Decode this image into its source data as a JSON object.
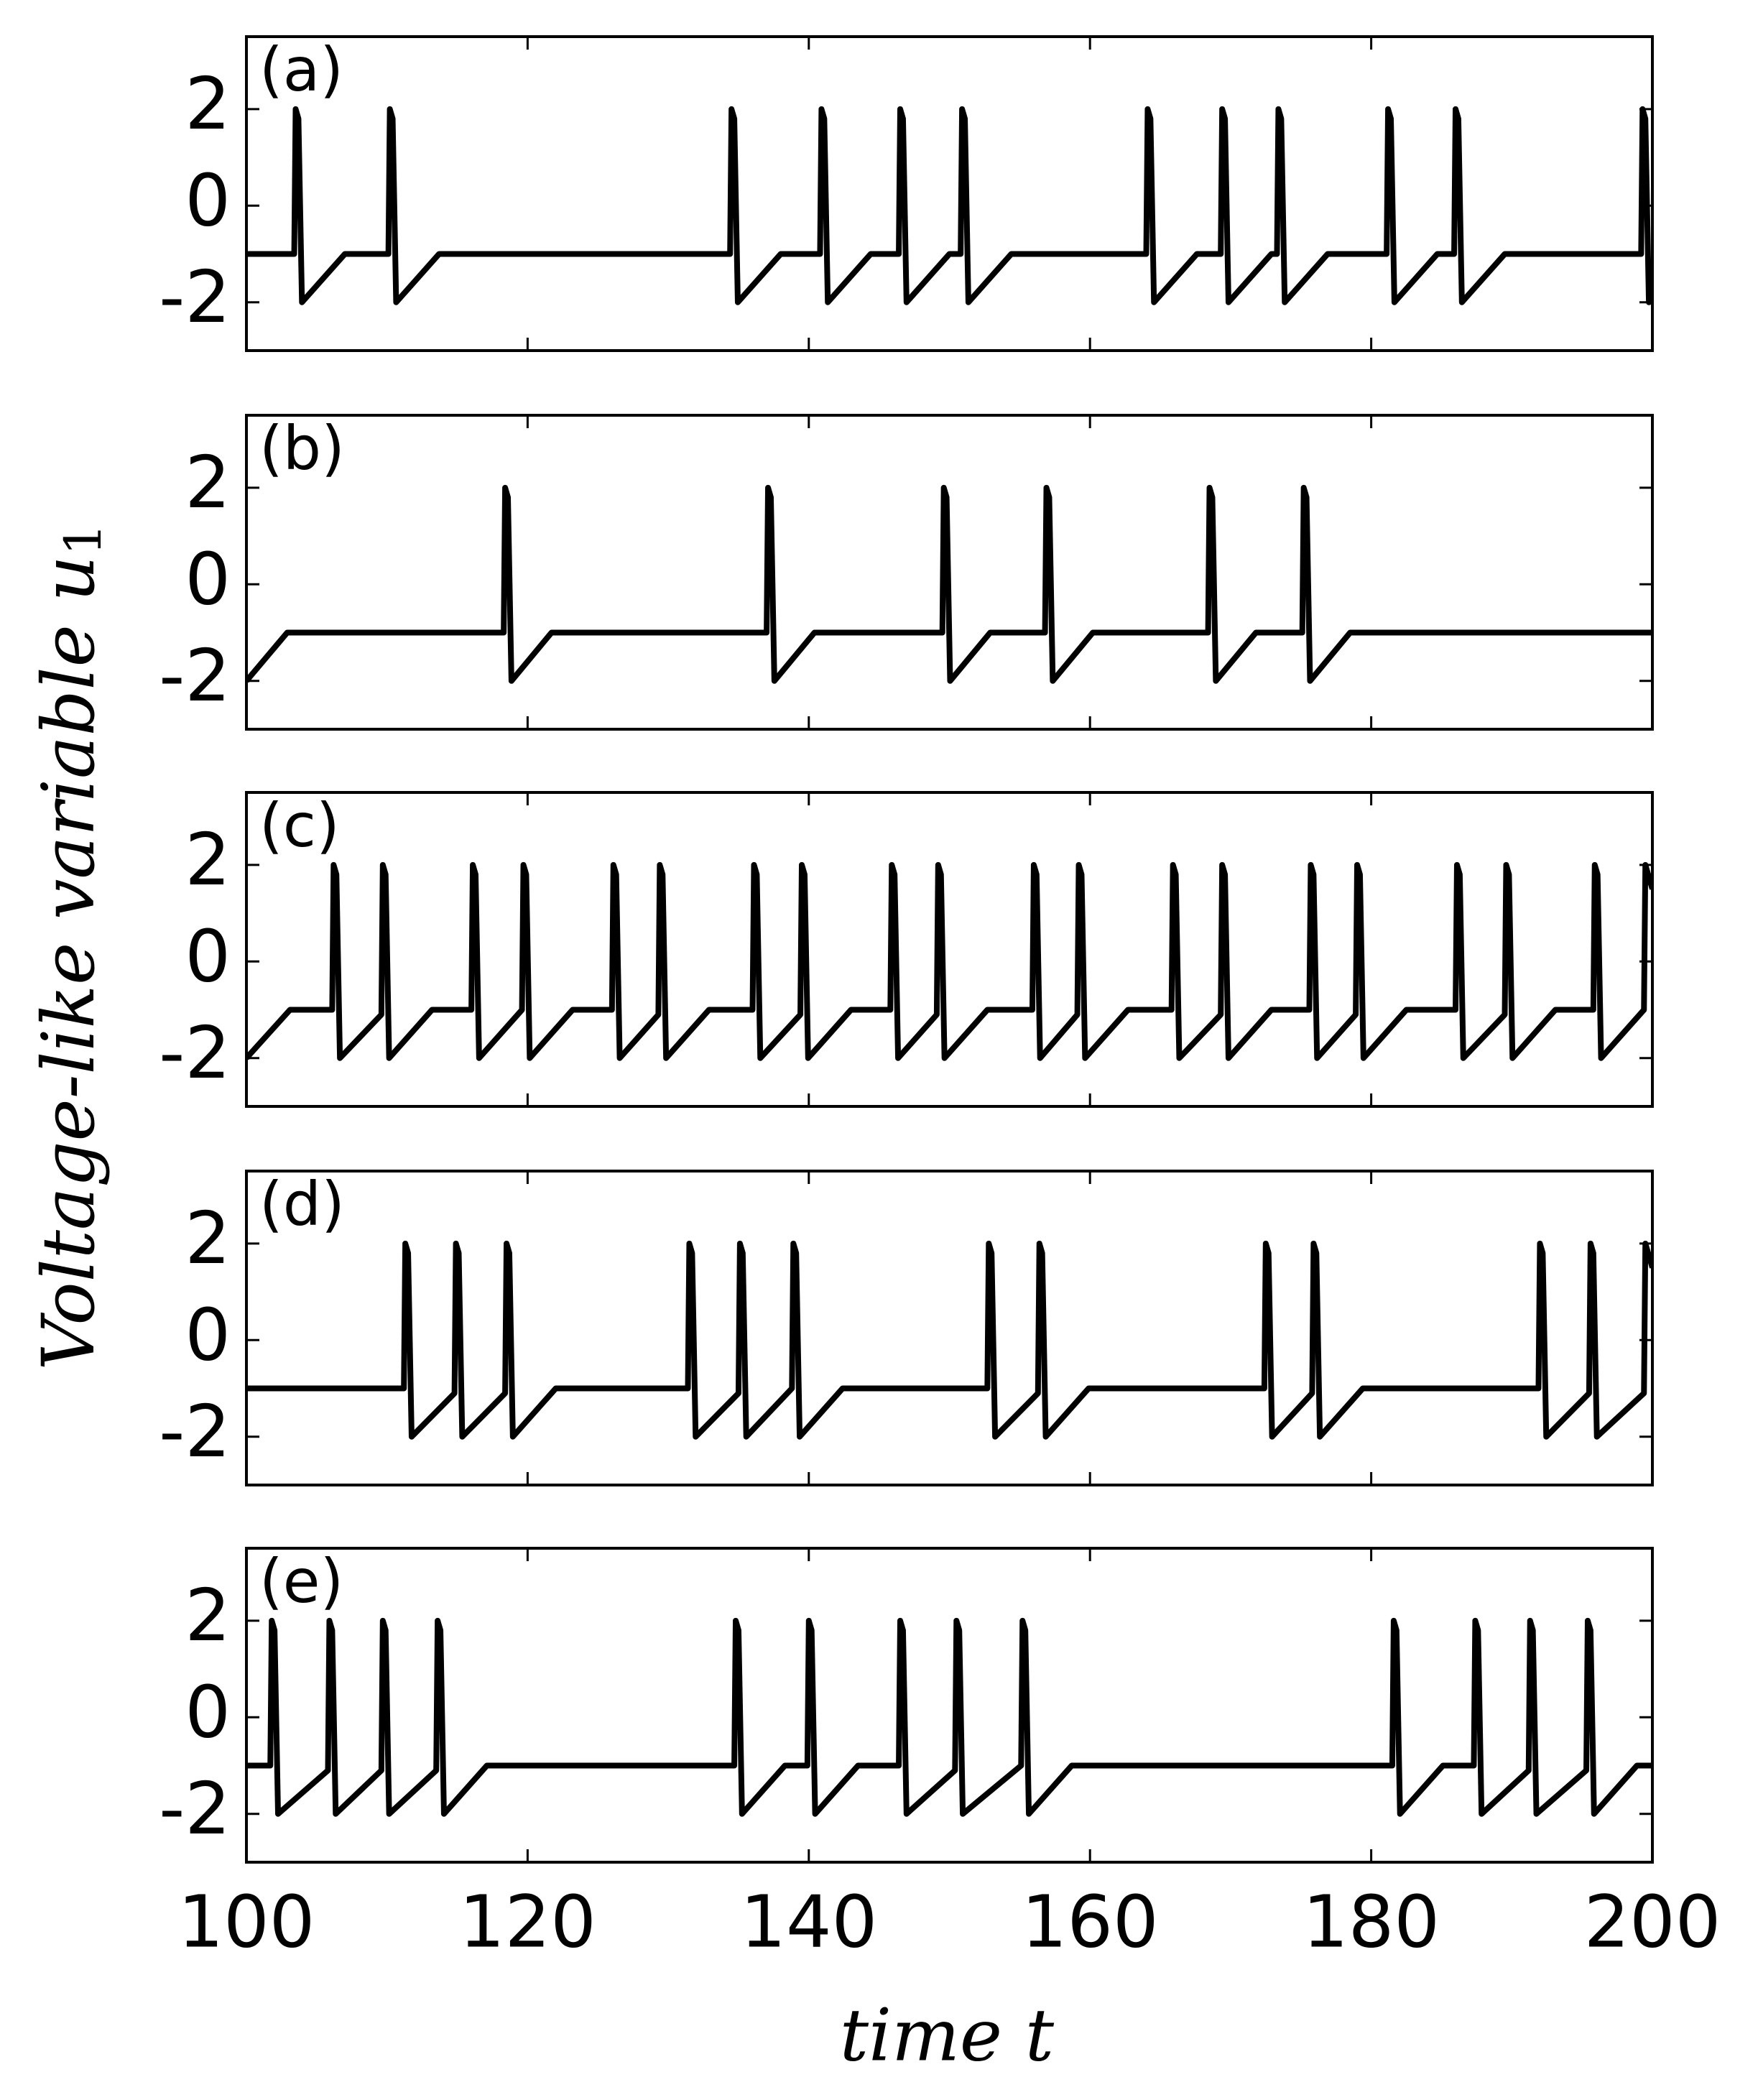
{
  "xlabel": "time t",
  "ylabel": "Voltage-like variable u",
  "ylabel_subscript": "1",
  "chart_data": [
    {
      "type": "line",
      "label": "(a)",
      "color": "#000000",
      "xlim": [
        100,
        200
      ],
      "ylim": [
        -3,
        3.5
      ],
      "yticks": [
        -2,
        0,
        2
      ],
      "xticks": [
        100,
        120,
        140,
        160,
        180,
        200
      ],
      "x": [
        100,
        103.4,
        103.5,
        103.7,
        103.95,
        107,
        110.1,
        110.2,
        110.4,
        110.65,
        113.7,
        134.4,
        134.5,
        134.7,
        134.95,
        138,
        140.8,
        140.9,
        141.1,
        141.35,
        144.4,
        146.4,
        146.5,
        146.7,
        146.95,
        150,
        150.8,
        150.9,
        151.1,
        151.35,
        154.4,
        164,
        164.1,
        164.3,
        164.55,
        167.6,
        169.3,
        169.4,
        169.6,
        169.85,
        172.9,
        173.3,
        173.4,
        173.6,
        173.85,
        176.9,
        181.1,
        181.2,
        181.4,
        181.65,
        184.7,
        185.9,
        186,
        186.2,
        186.45,
        189.5,
        199.2,
        199.3,
        199.5,
        199.75,
        200
      ],
      "values": [
        -1,
        -1,
        2,
        1.8,
        -2,
        -1,
        -1,
        2,
        1.8,
        -2,
        -1,
        -1,
        2,
        1.8,
        -2,
        -1,
        -1,
        2,
        1.8,
        -2,
        -1,
        -1,
        2,
        1.8,
        -2,
        -1,
        -1,
        2,
        1.8,
        -2,
        -1,
        -1,
        2,
        1.8,
        -2,
        -1,
        -1,
        2,
        1.8,
        -2,
        -1,
        -1,
        2,
        1.8,
        -2,
        -1,
        -1,
        2,
        1.8,
        -2,
        -1,
        -1,
        2,
        1.8,
        -2,
        -1,
        -1,
        2,
        1.8,
        -2,
        -1.9
      ]
    },
    {
      "type": "line",
      "label": "(b)",
      "color": "#000000",
      "xlim": [
        100,
        200
      ],
      "ylim": [
        -3,
        3.5
      ],
      "yticks": [
        -2,
        0,
        2
      ],
      "xticks": [
        100,
        120,
        140,
        160,
        180,
        200
      ],
      "x": [
        100,
        102.9,
        118.3,
        118.4,
        118.6,
        118.85,
        121.7,
        137,
        137.1,
        137.3,
        137.55,
        140.4,
        149.5,
        149.6,
        149.8,
        150.05,
        152.9,
        156.8,
        156.9,
        157.1,
        157.35,
        160.2,
        168.4,
        168.5,
        168.7,
        168.95,
        171.8,
        175.1,
        175.2,
        175.4,
        175.65,
        178.5,
        200
      ],
      "values": [
        -2,
        -1,
        -1,
        2,
        1.8,
        -2,
        -1,
        -1,
        2,
        1.8,
        -2,
        -1,
        -1,
        2,
        1.8,
        -2,
        -1,
        -1,
        2,
        1.8,
        -2,
        -1,
        -1,
        2,
        1.8,
        -2,
        -1,
        -1,
        2,
        1.8,
        -2,
        -1,
        -1
      ]
    },
    {
      "type": "line",
      "label": "(c)",
      "color": "#000000",
      "xlim": [
        100,
        200
      ],
      "ylim": [
        -3,
        3.5
      ],
      "yticks": [
        -2,
        0,
        2
      ],
      "xticks": [
        100,
        120,
        140,
        160,
        180,
        200
      ],
      "x": [
        100,
        103.1,
        106.1,
        106.2,
        106.4,
        106.65,
        109.6,
        109.7,
        109.9,
        110.15,
        113.2,
        116,
        116.1,
        116.3,
        116.55,
        119.6,
        119.7,
        119.9,
        120.15,
        123.2,
        126,
        126.1,
        126.3,
        126.55,
        129.3,
        129.4,
        129.6,
        129.85,
        132.9,
        136,
        136.1,
        136.3,
        136.55,
        139.4,
        139.5,
        139.7,
        139.95,
        143,
        145.8,
        145.9,
        146.1,
        146.35,
        149.1,
        149.2,
        149.4,
        149.65,
        152.7,
        155.9,
        156,
        156.2,
        156.45,
        159.1,
        159.2,
        159.4,
        159.65,
        162.7,
        165.8,
        165.9,
        166.1,
        166.35,
        169.3,
        169.4,
        169.6,
        169.85,
        172.9,
        175.6,
        175.7,
        175.9,
        176.15,
        178.9,
        179,
        179.2,
        179.45,
        182.5,
        186,
        186.1,
        186.3,
        186.55,
        189.5,
        189.6,
        189.8,
        190.05,
        193.1,
        195.8,
        195.9,
        196.1,
        196.35,
        199.4,
        199.5,
        200
      ],
      "values": [
        -2,
        -1,
        -1,
        2,
        1.8,
        -2,
        -1.1,
        2,
        1.8,
        -2,
        -1,
        -1,
        2,
        1.8,
        -2,
        -1,
        2,
        1.8,
        -2,
        -1,
        -1,
        2,
        1.8,
        -2,
        -1.1,
        2,
        1.8,
        -2,
        -1,
        -1,
        2,
        1.8,
        -2,
        -1.1,
        2,
        1.8,
        -2,
        -1,
        -1,
        2,
        1.8,
        -2,
        -1.1,
        2,
        1.8,
        -2,
        -1,
        -1,
        2,
        1.8,
        -2,
        -1.1,
        2,
        1.8,
        -2,
        -1,
        -1,
        2,
        1.8,
        -2,
        -1.1,
        2,
        1.8,
        -2,
        -1,
        -1,
        2,
        1.8,
        -2,
        -1.1,
        2,
        1.8,
        -2,
        -1,
        -1,
        2,
        1.8,
        -2,
        -1.1,
        2,
        1.8,
        -2,
        -1,
        -1,
        2,
        1.8,
        -2,
        -1,
        2,
        1.5
      ]
    },
    {
      "type": "line",
      "label": "(d)",
      "color": "#000000",
      "xlim": [
        100,
        200
      ],
      "ylim": [
        -3,
        3.5
      ],
      "yticks": [
        -2,
        0,
        2
      ],
      "xticks": [
        100,
        120,
        140,
        160,
        180,
        200
      ],
      "x": [
        100,
        111.2,
        111.3,
        111.5,
        111.75,
        114.8,
        114.9,
        115.1,
        115.35,
        118.4,
        118.5,
        118.7,
        118.95,
        122,
        131.4,
        131.5,
        131.7,
        131.95,
        135,
        135.1,
        135.3,
        135.55,
        138.8,
        138.9,
        139.1,
        139.35,
        142.4,
        152.7,
        152.8,
        153,
        153.25,
        156.3,
        156.4,
        156.6,
        156.85,
        159.9,
        172.4,
        172.5,
        172.7,
        172.95,
        175.8,
        175.9,
        176.1,
        176.35,
        179.4,
        191.9,
        192,
        192.2,
        192.45,
        195.5,
        195.6,
        195.8,
        196.05,
        199.4,
        199.5,
        200
      ],
      "values": [
        -1,
        -1,
        2,
        1.8,
        -2,
        -1.1,
        2,
        1.8,
        -2,
        -1.1,
        2,
        1.8,
        -2,
        -1,
        -1,
        2,
        1.8,
        -2,
        -1.1,
        2,
        1.8,
        -2,
        -1,
        2,
        1.8,
        -2,
        -1,
        -1,
        2,
        1.8,
        -2,
        -1.1,
        2,
        1.8,
        -2,
        -1,
        -1,
        2,
        1.8,
        -2,
        -1.1,
        2,
        1.8,
        -2,
        -1,
        -1,
        2,
        1.8,
        -2,
        -1.1,
        2,
        1.8,
        -2,
        -1.1,
        2,
        1.5
      ]
    },
    {
      "type": "line",
      "label": "(e)",
      "color": "#000000",
      "xlim": [
        100,
        200
      ],
      "ylim": [
        -3,
        3.5
      ],
      "yticks": [
        -2,
        0,
        2
      ],
      "xticks": [
        100,
        120,
        140,
        160,
        180,
        200
      ],
      "x": [
        100,
        101.7,
        101.8,
        102,
        102.25,
        105.8,
        105.9,
        106.1,
        106.35,
        109.6,
        109.7,
        109.9,
        110.15,
        113.5,
        113.6,
        113.8,
        114.05,
        117.1,
        134.7,
        134.8,
        135,
        135.25,
        138.3,
        139.9,
        140,
        140.2,
        140.45,
        143.5,
        146.4,
        146.5,
        146.7,
        146.95,
        150.4,
        150.5,
        150.7,
        150.95,
        155.1,
        155.2,
        155.4,
        155.65,
        158.7,
        181.5,
        181.6,
        181.8,
        182.05,
        185.1,
        187.3,
        187.4,
        187.6,
        187.85,
        191.2,
        191.3,
        191.5,
        191.75,
        195.3,
        195.4,
        195.6,
        195.85,
        198.9,
        200
      ],
      "values": [
        -1,
        -1,
        2,
        1.8,
        -2,
        -1.1,
        2,
        1.8,
        -2,
        -1.1,
        2,
        1.8,
        -2,
        -1.1,
        2,
        1.8,
        -2,
        -1,
        -1,
        2,
        1.8,
        -2,
        -1,
        -1,
        2,
        1.8,
        -2,
        -1,
        -1,
        2,
        1.8,
        -2,
        -1.1,
        2,
        1.8,
        -2,
        -1,
        2,
        1.8,
        -2,
        -1,
        -1,
        2,
        1.8,
        -2,
        -1,
        -1,
        2,
        1.8,
        -2,
        -1.1,
        2,
        1.8,
        -2,
        -1.1,
        2,
        1.8,
        -2,
        -1,
        -1
      ]
    }
  ]
}
